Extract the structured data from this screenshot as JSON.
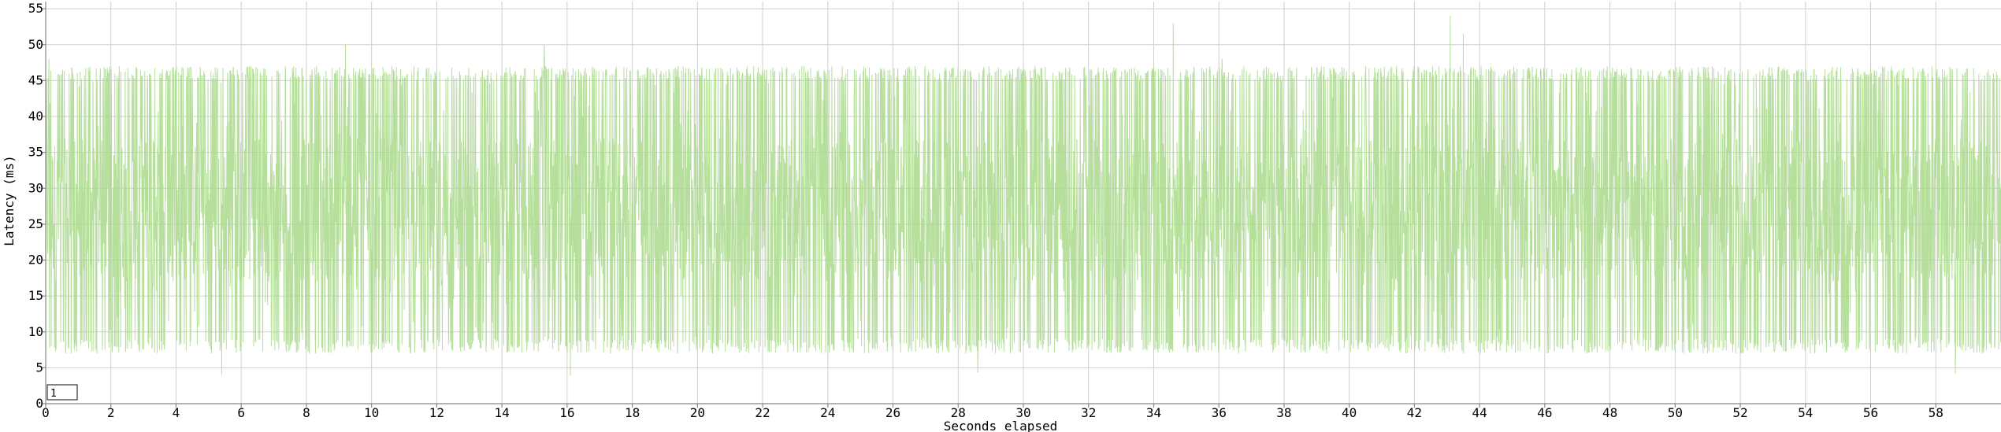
{
  "chart_data": {
    "type": "line",
    "title": "",
    "xlabel": "Seconds elapsed",
    "ylabel": "Latency (ms)",
    "xlim": [
      0,
      60
    ],
    "ylim": [
      0,
      56
    ],
    "x_ticks": [
      0,
      2,
      4,
      6,
      8,
      10,
      12,
      14,
      16,
      18,
      20,
      22,
      24,
      26,
      28,
      30,
      32,
      34,
      36,
      38,
      40,
      42,
      44,
      46,
      48,
      50,
      52,
      54,
      56,
      58
    ],
    "y_ticks": [
      0,
      5,
      10,
      15,
      20,
      25,
      30,
      35,
      40,
      45,
      50,
      55
    ],
    "grid": true,
    "legend_position": "bottom-left",
    "series": [
      {
        "name": "1",
        "color": "#a8d98a",
        "summary": {
          "typical_low_ms": 7,
          "typical_high_ms": 47,
          "dense_band_ms": [
            17,
            37
          ],
          "min_ms": 4,
          "max_ms": 54
        },
        "notable_points": [
          {
            "x": 0.1,
            "y": 48
          },
          {
            "x": 5.4,
            "y": 4
          },
          {
            "x": 9.2,
            "y": 50
          },
          {
            "x": 15.3,
            "y": 50
          },
          {
            "x": 16.1,
            "y": 3.9
          },
          {
            "x": 28.6,
            "y": 4.3
          },
          {
            "x": 34.6,
            "y": 53
          },
          {
            "x": 36.1,
            "y": 48
          },
          {
            "x": 43.1,
            "y": 54
          },
          {
            "x": 43.5,
            "y": 51.5
          },
          {
            "x": 58.6,
            "y": 4.2
          }
        ]
      }
    ]
  }
}
